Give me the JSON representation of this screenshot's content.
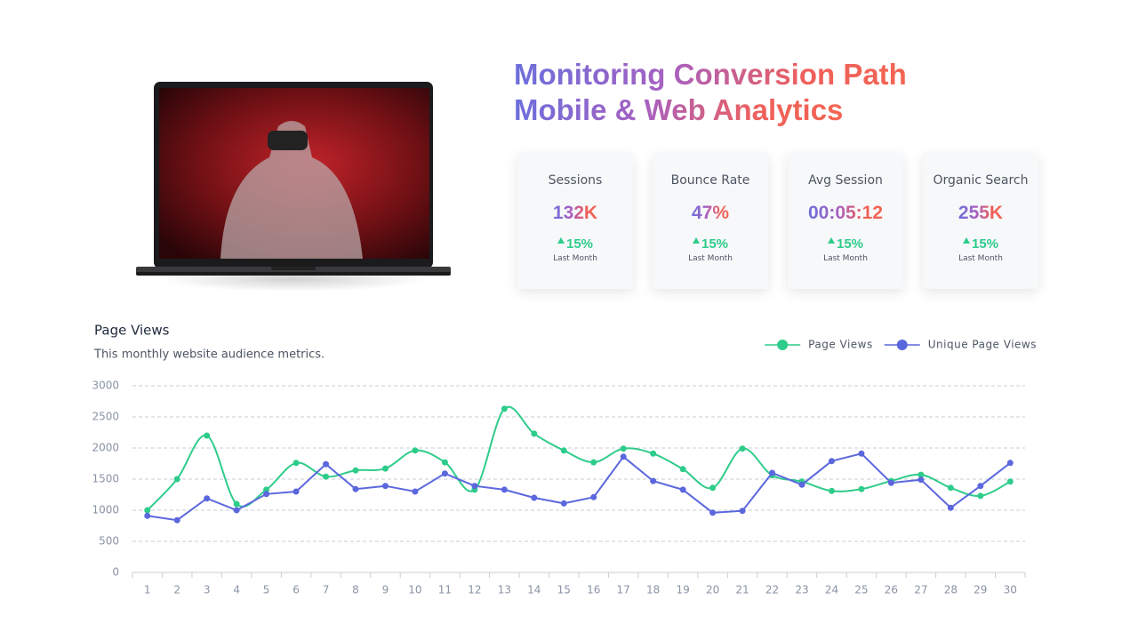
{
  "header": {
    "title_line1": "Monitoring Conversion Path",
    "title_line2": "Mobile & Web Analytics"
  },
  "cards": [
    {
      "label": "Sessions",
      "value": "132K",
      "change": "15%",
      "period": "Last Month"
    },
    {
      "label": "Bounce Rate",
      "value": "47%",
      "change": "15%",
      "period": "Last Month"
    },
    {
      "label": "Avg Session",
      "value": "00:05:12",
      "change": "15%",
      "period": "Last Month"
    },
    {
      "label": "Organic Search",
      "value": "255K",
      "change": "15%",
      "period": "Last Month"
    }
  ],
  "chart_data": {
    "type": "line",
    "title": "Page Views",
    "subtitle": "This monthly website audience metrics.",
    "categories": [
      1,
      2,
      3,
      4,
      5,
      6,
      7,
      8,
      9,
      10,
      11,
      12,
      13,
      14,
      15,
      16,
      17,
      18,
      19,
      20,
      21,
      22,
      23,
      24,
      25,
      26,
      27,
      28,
      29,
      30
    ],
    "series": [
      {
        "name": "Page Views",
        "color": "#2ecc8a",
        "smooth": true,
        "values": [
          1000,
          1500,
          2200,
          1100,
          1330,
          1760,
          1540,
          1640,
          1670,
          1960,
          1770,
          1330,
          2630,
          2230,
          1960,
          1770,
          1990,
          1910,
          1660,
          1360,
          1990,
          1560,
          1460,
          1310,
          1340,
          1470,
          1570,
          1360,
          1230,
          1460
        ]
      },
      {
        "name": "Unique Page Views",
        "color": "#5b67dd",
        "smooth": false,
        "values": [
          910,
          840,
          1190,
          1000,
          1260,
          1300,
          1740,
          1340,
          1390,
          1300,
          1590,
          1390,
          1330,
          1200,
          1110,
          1210,
          1860,
          1470,
          1330,
          960,
          990,
          1600,
          1410,
          1790,
          1910,
          1440,
          1490,
          1040,
          1390,
          1760
        ]
      }
    ],
    "ylim": [
      0,
      3000
    ],
    "yticks": [
      0,
      500,
      1000,
      1500,
      2000,
      2500,
      3000
    ],
    "grid": true,
    "legend": "top-right"
  }
}
